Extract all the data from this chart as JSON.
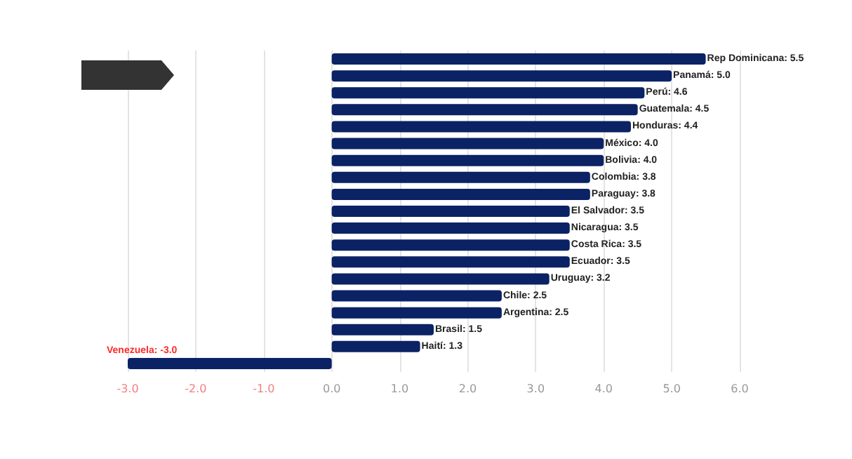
{
  "chart_data": {
    "type": "bar",
    "orientation": "horizontal",
    "categories": [
      null,
      null,
      null,
      null,
      null,
      null,
      null,
      null,
      null,
      null,
      null,
      null,
      null,
      null,
      null,
      null,
      null,
      null,
      null
    ],
    "values": [
      5.5,
      5.0,
      4.6,
      4.5,
      4.4,
      4.0,
      4.0,
      3.8,
      3.8,
      3.5,
      3.5,
      3.5,
      3.5,
      3.2,
      2.5,
      2.5,
      1.5,
      1.3,
      -3.0
    ],
    "value_labels": [
      "Rep Dominicana: 5.5",
      "Panamá: 5.0",
      "Perú: 4.6",
      "Guatemala: 4.5",
      "Honduras: 4.4",
      "México: 4.0",
      "Bolivia: 4.0",
      "Colombia: 3.8",
      "Paraguay: 3.8",
      "El Salvador: 3.5",
      "Nicaragua: 3.5",
      "Costa Rica: 3.5",
      "Ecuador: 3.5",
      "Uruguay: 3.2",
      "Chile: 2.5",
      "Argentina: 2.5",
      "Brasil: 1.5",
      "Haití: 1.3",
      "Venezuela: -3.0"
    ],
    "color": "#0b2265",
    "xlim": [
      -3,
      6
    ],
    "xticks": [
      {
        "value": -3,
        "label": "-3.0"
      },
      {
        "value": -2,
        "label": "-2.0"
      },
      {
        "value": -1,
        "label": "-1.0"
      },
      {
        "value": 0,
        "label": "0.0"
      },
      {
        "value": 1,
        "label": "1.0"
      },
      {
        "value": 2,
        "label": "2.0"
      },
      {
        "value": 3,
        "label": "3.0"
      },
      {
        "value": 4,
        "label": "4.0"
      },
      {
        "value": 5,
        "label": "5.0"
      },
      {
        "value": 6,
        "label": "6.0"
      }
    ],
    "grid": "x",
    "tick_labels": "x"
  }
}
